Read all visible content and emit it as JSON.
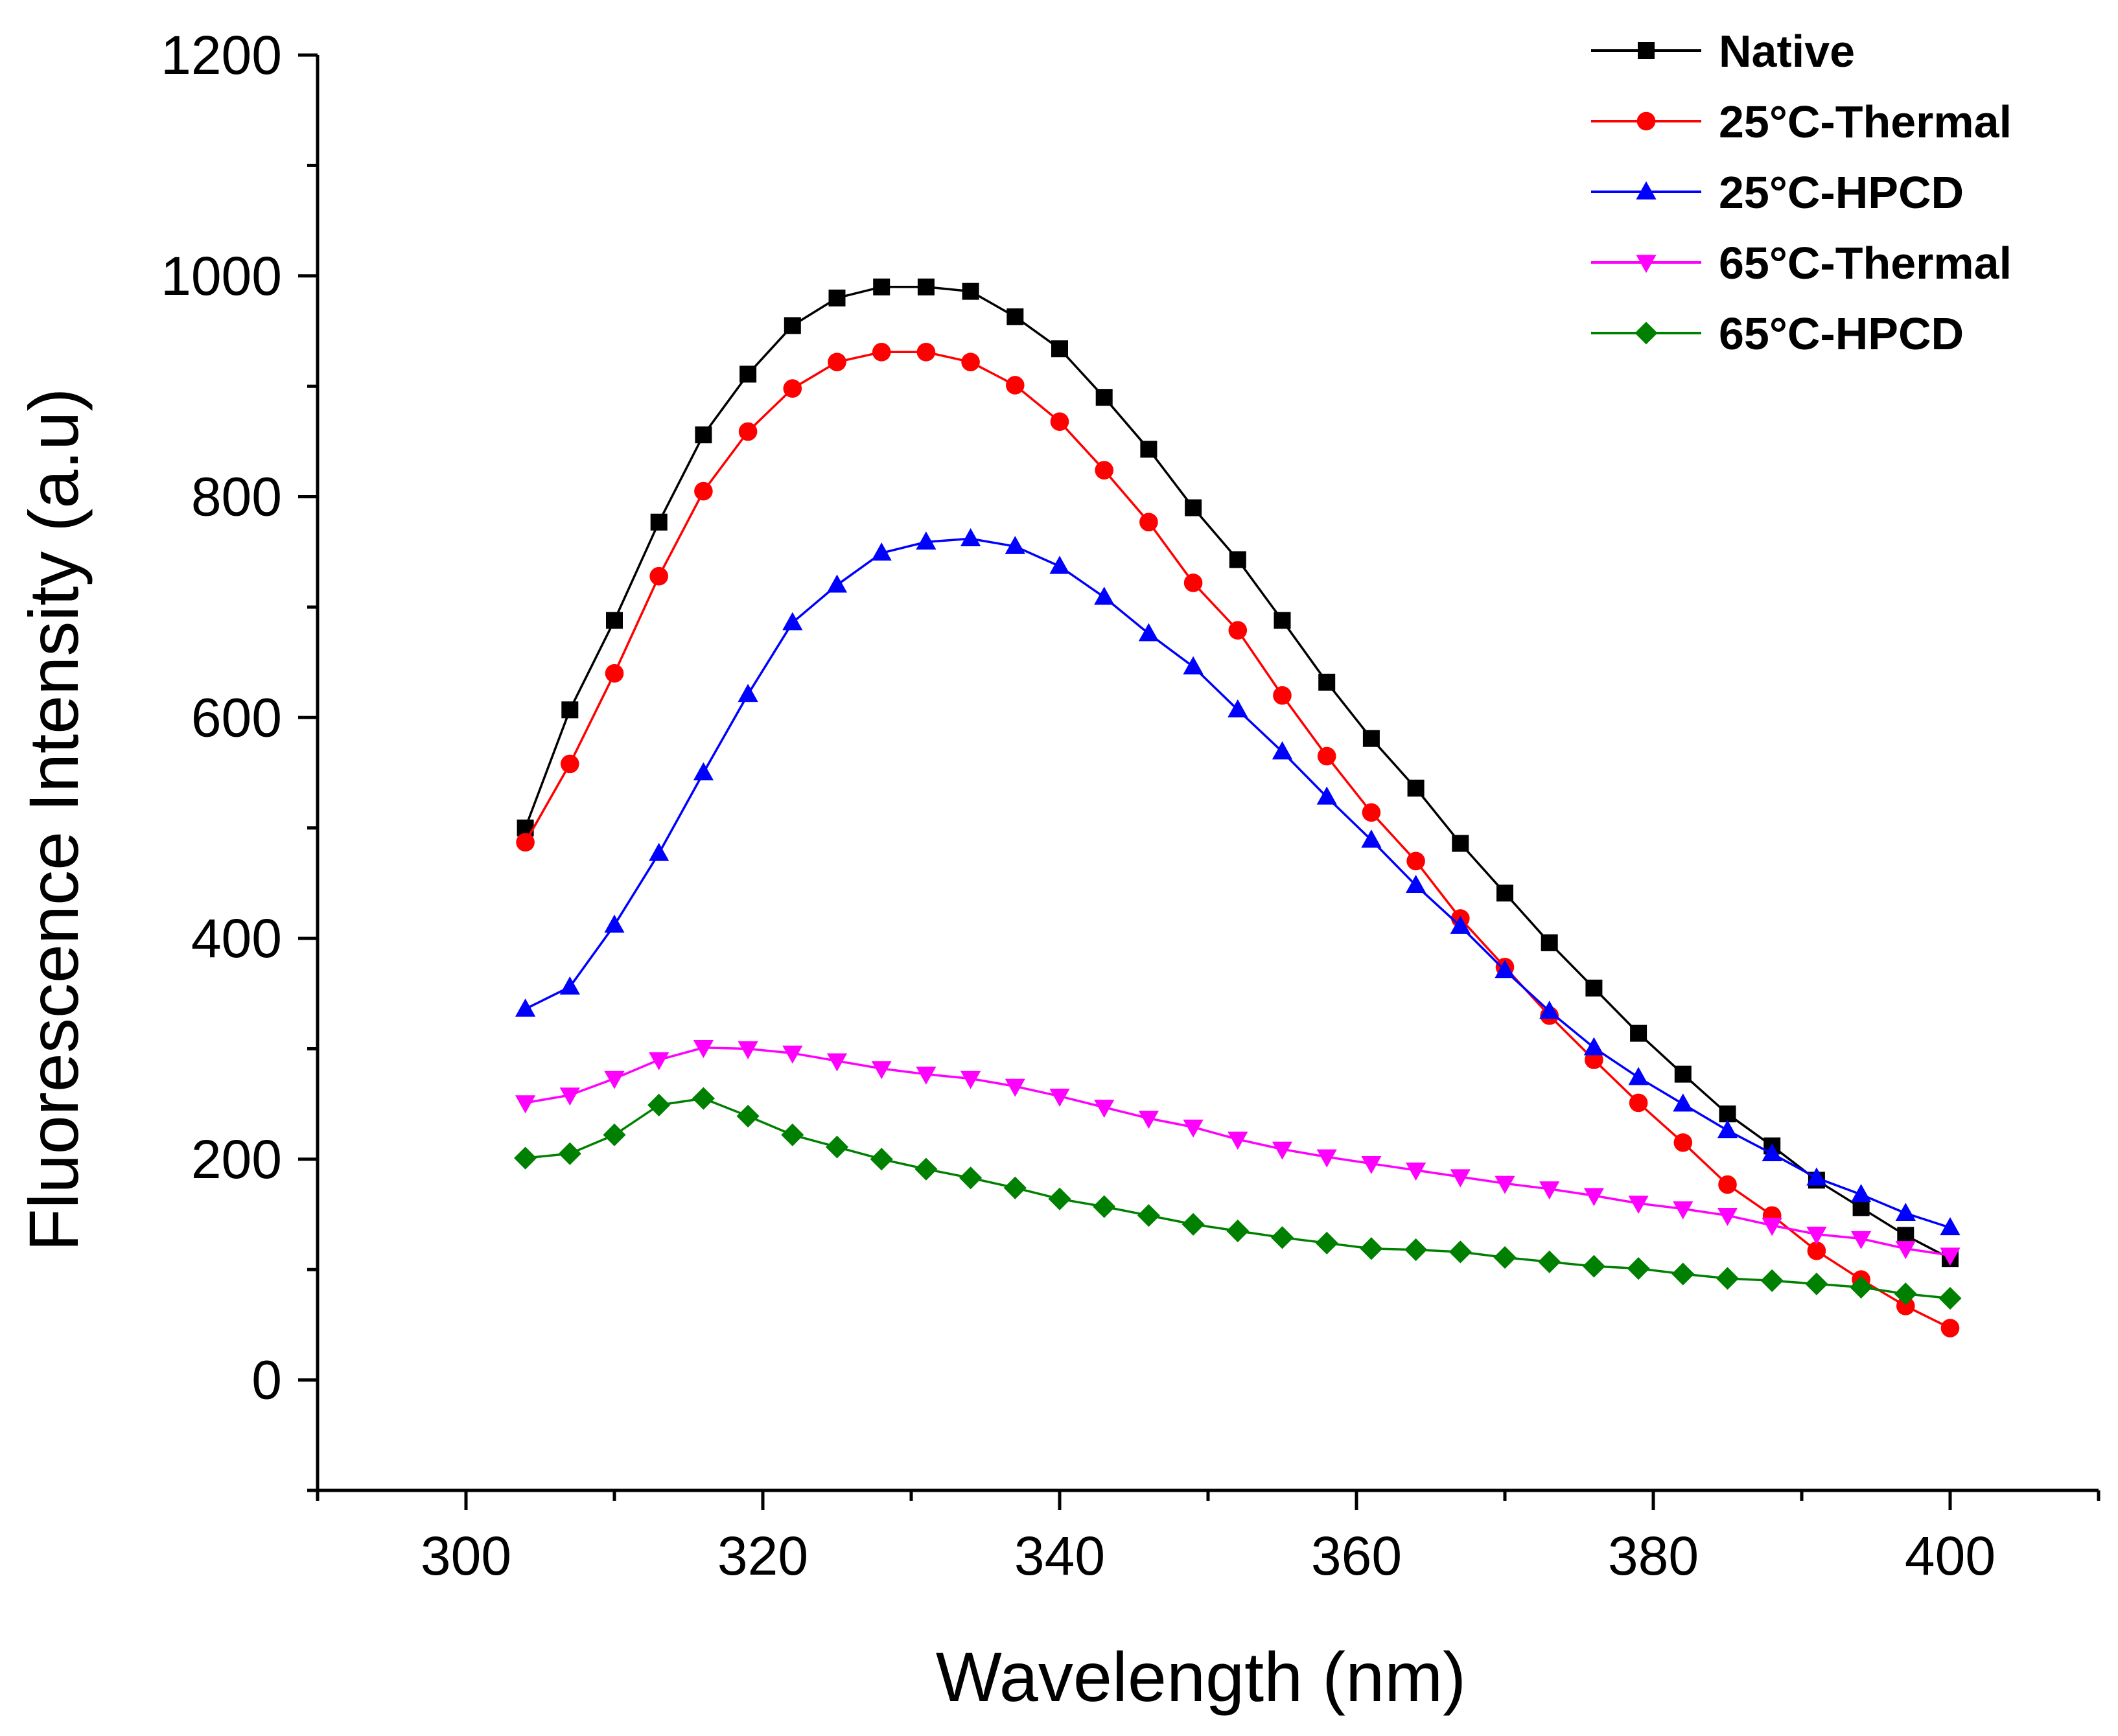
{
  "chart_data": {
    "type": "line",
    "title": "",
    "xlabel": "Wavelength (nm)",
    "ylabel": "Fluorescence Intensity (a.u)",
    "xlim": [
      290,
      410
    ],
    "ylim": [
      -100,
      1200
    ],
    "xticks": [
      300,
      320,
      340,
      360,
      380,
      400
    ],
    "xtick_labels": [
      "300",
      "320",
      "340",
      "360",
      "380",
      "400"
    ],
    "yticks": [
      0,
      200,
      400,
      600,
      800,
      1000,
      1200
    ],
    "ytick_labels": [
      "0",
      "200",
      "400",
      "600",
      "800",
      "1000",
      "1200"
    ],
    "grid": false,
    "legend_position": "top-right",
    "x": [
      304,
      307,
      310,
      313,
      316,
      319,
      322,
      325,
      328,
      331,
      334,
      337,
      340,
      343,
      346,
      349,
      352,
      355,
      358,
      361,
      364,
      367,
      370,
      373,
      376,
      379,
      382,
      385,
      388,
      391,
      394,
      397,
      400
    ],
    "series": [
      {
        "name": "Native",
        "color": "#000000",
        "marker": "square",
        "values": [
          500,
          607,
          688,
          777,
          856,
          911,
          955,
          980,
          990,
          990,
          986,
          963,
          934,
          890,
          843,
          790,
          743,
          688,
          632,
          581,
          536,
          486,
          441,
          396,
          355,
          314,
          277,
          241,
          212,
          181,
          156,
          131,
          110
        ]
      },
      {
        "name": "25°C-Thermal",
        "color": "#ff0000",
        "marker": "circle",
        "values": [
          487,
          558,
          640,
          728,
          805,
          859,
          898,
          922,
          931,
          931,
          922,
          901,
          868,
          824,
          777,
          722,
          679,
          620,
          565,
          514,
          470,
          418,
          374,
          330,
          290,
          251,
          215,
          177,
          149,
          117,
          91,
          67,
          47
        ]
      },
      {
        "name": "25°C-HPCD",
        "color": "#0000ff",
        "marker": "triangle-up",
        "values": [
          336,
          356,
          412,
          477,
          550,
          621,
          686,
          720,
          749,
          759,
          762,
          755,
          737,
          709,
          676,
          646,
          607,
          569,
          528,
          489,
          448,
          411,
          371,
          334,
          301,
          274,
          250,
          226,
          205,
          183,
          168,
          151,
          138
        ]
      },
      {
        "name": "65°C-Thermal",
        "color": "#ff00ff",
        "marker": "triangle-down",
        "values": [
          251,
          258,
          273,
          290,
          301,
          300,
          296,
          289,
          282,
          277,
          273,
          266,
          257,
          247,
          237,
          229,
          218,
          209,
          202,
          196,
          190,
          184,
          178,
          173,
          167,
          160,
          155,
          149,
          140,
          132,
          128,
          119,
          113
        ]
      },
      {
        "name": "65°C-HPCD",
        "color": "#008000",
        "marker": "diamond",
        "values": [
          201,
          205,
          222,
          249,
          255,
          239,
          222,
          211,
          200,
          191,
          183,
          174,
          164,
          157,
          149,
          141,
          135,
          129,
          124,
          119,
          118,
          116,
          111,
          107,
          103,
          101,
          96,
          92,
          90,
          87,
          84,
          78,
          74
        ]
      }
    ]
  }
}
